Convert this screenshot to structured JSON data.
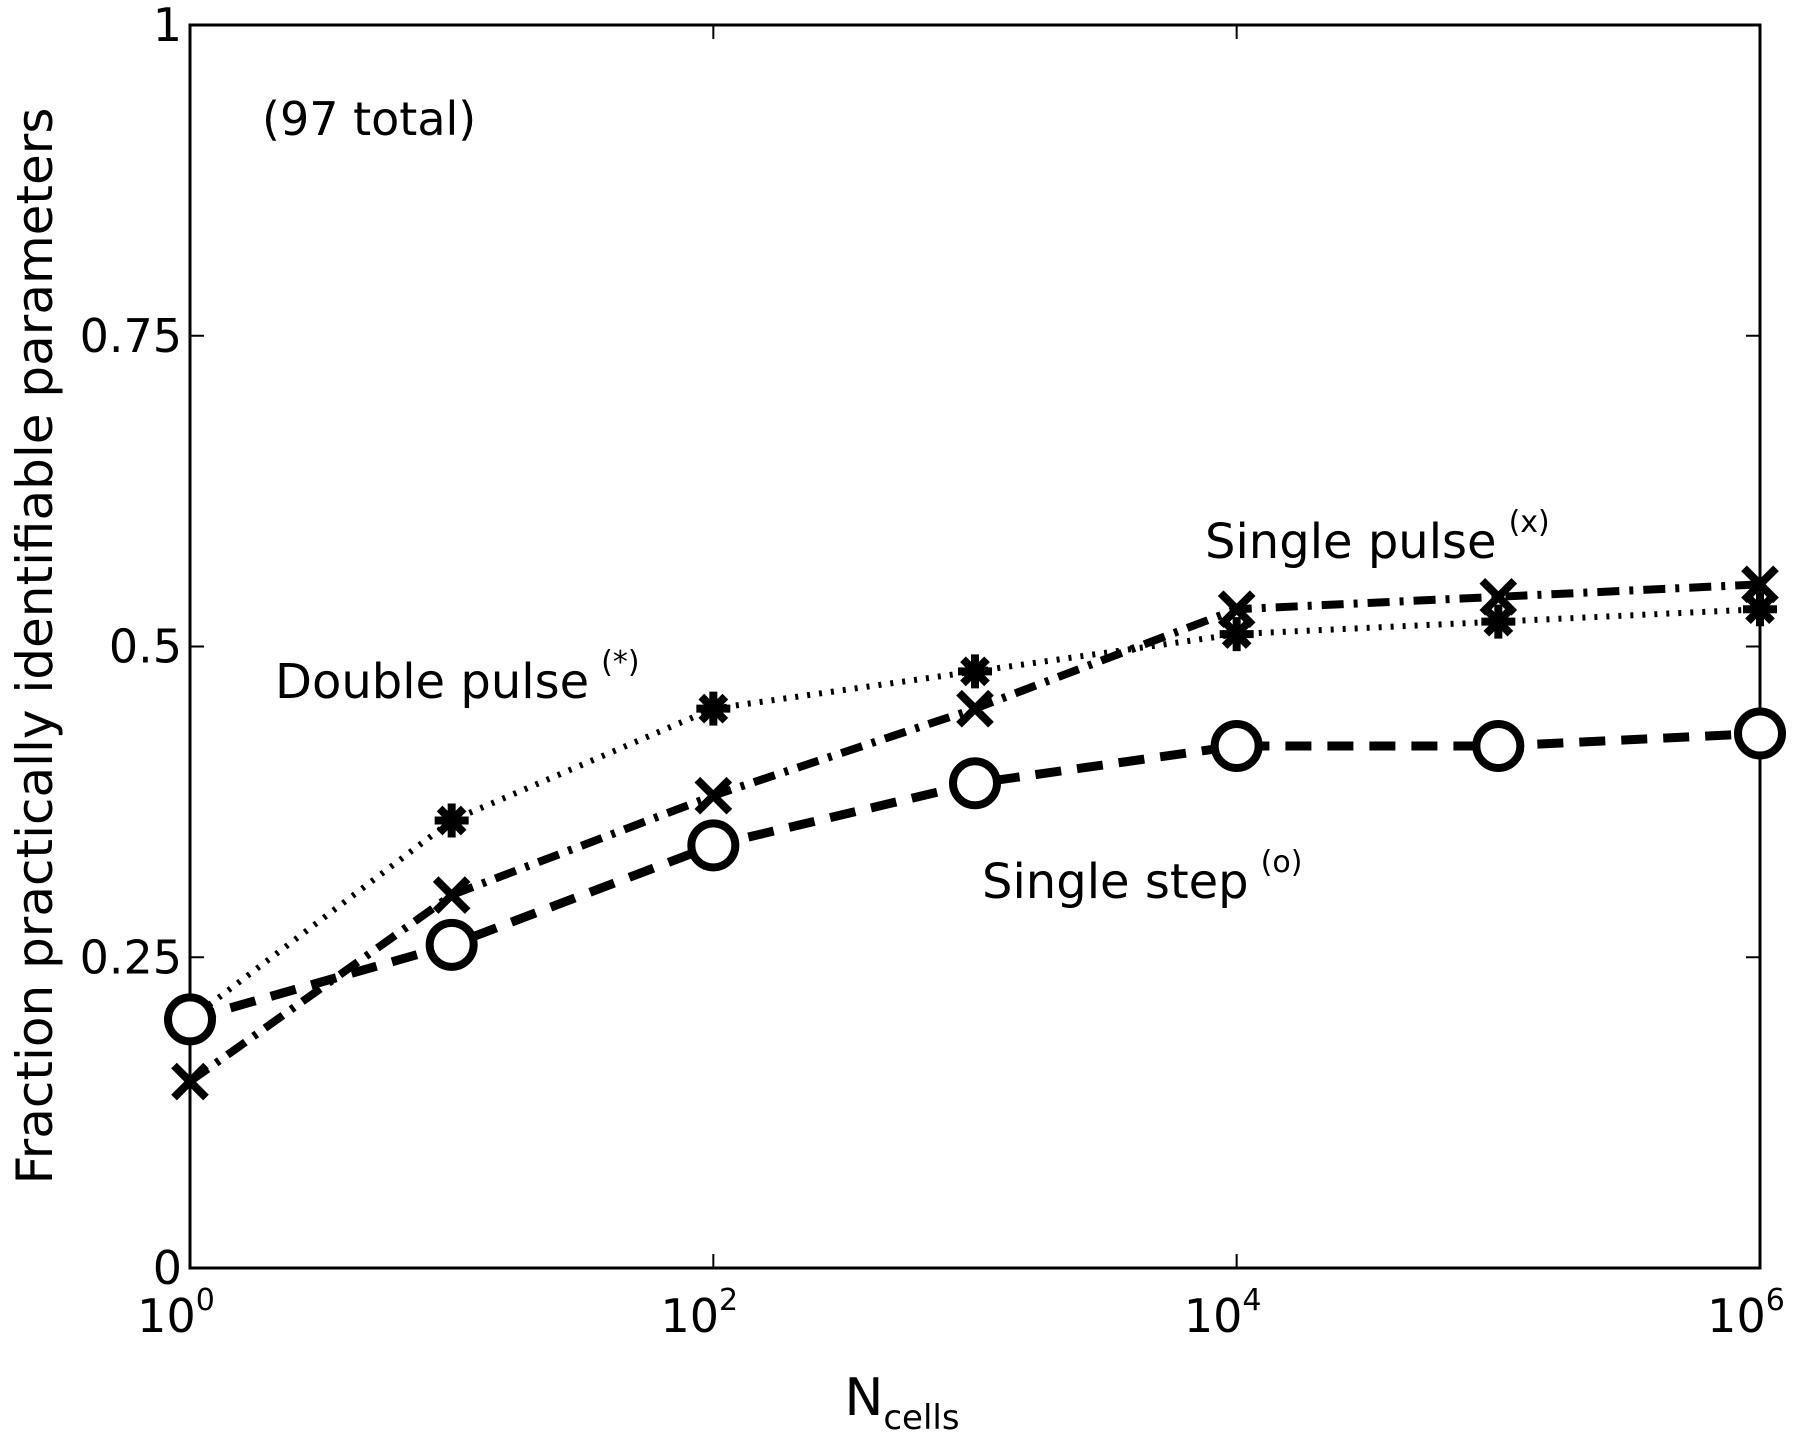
{
  "chart_data": {
    "type": "line",
    "title": "",
    "annotation": "(97 total)",
    "xlabel": "N",
    "xlabel_sub": "cells",
    "ylabel": "Fraction practically identifiable parameters",
    "xscale": "log",
    "xlim": [
      1,
      1000000
    ],
    "ylim": [
      0,
      1
    ],
    "grid": false,
    "legend": "none",
    "x": [
      1,
      10,
      100,
      1000,
      10000,
      100000,
      1000000
    ],
    "x_ticks": [
      {
        "value": 1,
        "base": "10",
        "exp": "0"
      },
      {
        "value": 100,
        "base": "10",
        "exp": "2"
      },
      {
        "value": 10000,
        "base": "10",
        "exp": "4"
      },
      {
        "value": 1000000,
        "base": "10",
        "exp": "6"
      }
    ],
    "y_ticks": [
      "0",
      "0.25",
      "0.5",
      "0.75",
      "1"
    ],
    "y_tick_values": [
      0,
      0.25,
      0.5,
      0.75,
      1
    ],
    "series": [
      {
        "name": "Double pulse",
        "label_sup": "(*)",
        "marker": "asterisk",
        "line_style": "dotted",
        "values": [
          0.2,
          0.36,
          0.45,
          0.48,
          0.51,
          0.52,
          0.53
        ]
      },
      {
        "name": "Single pulse",
        "label_sup": "(x)",
        "marker": "x",
        "line_style": "dashdot",
        "values": [
          0.15,
          0.3,
          0.38,
          0.45,
          0.53,
          0.54,
          0.55
        ]
      },
      {
        "name": "Single step",
        "label_sup": "(o)",
        "marker": "circle",
        "line_style": "dashed",
        "values": [
          0.2,
          0.26,
          0.34,
          0.39,
          0.42,
          0.42,
          0.43
        ]
      }
    ],
    "color": "#000000"
  }
}
